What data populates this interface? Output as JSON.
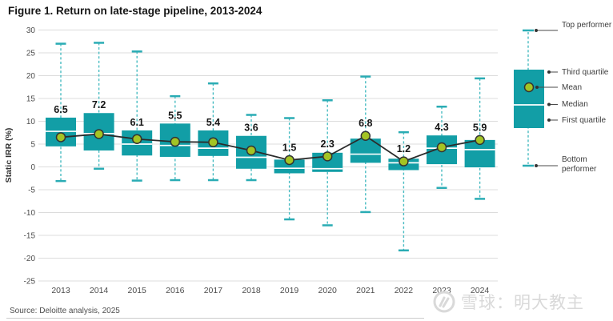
{
  "title": "Figure 1. Return on late-stage pipeline, 2013-2024",
  "source": "Source: Deloitte analysis, 2025",
  "watermark": "雪球：明大教主",
  "colors": {
    "box": "#129EA6",
    "whisker": "#49BCC2",
    "cap": "#2AACB4",
    "median": "#FFFFFF",
    "mean_dot": "#A3C424",
    "mean_dot_border": "#333333",
    "mean_line": "#2B2B2B",
    "grid": "#DCDCDC",
    "tick_text": "#4D4D4D",
    "value_label": "#151515"
  },
  "legend": {
    "top_performer": "Top performer",
    "third_quartile": "Third quartile",
    "mean": "Mean",
    "median": "Median",
    "first_quartile": "First quartile",
    "bottom_performer": "Bottom performer"
  },
  "chart_data": {
    "type": "boxplot",
    "title": "Figure 1. Return on late-stage pipeline, 2013-2024",
    "ylabel": "Static IRR (%)",
    "ylim": [
      -25,
      30
    ],
    "ytick_step": 5,
    "grid": true,
    "categories": [
      "2013",
      "2014",
      "2015",
      "2016",
      "2017",
      "2018",
      "2019",
      "2020",
      "2021",
      "2022",
      "2023",
      "2024"
    ],
    "series": [
      {
        "name": "top_performer",
        "values": [
          27.0,
          27.2,
          25.3,
          15.5,
          18.3,
          11.4,
          10.7,
          14.6,
          19.8,
          7.6,
          13.2,
          19.4
        ]
      },
      {
        "name": "third_quartile",
        "values": [
          10.8,
          11.8,
          8.0,
          9.5,
          8.0,
          6.8,
          1.6,
          3.1,
          6.2,
          1.8,
          6.9,
          5.9
        ]
      },
      {
        "name": "mean",
        "values": [
          6.5,
          7.2,
          6.1,
          5.5,
          5.4,
          3.6,
          1.5,
          2.3,
          6.8,
          1.2,
          4.3,
          5.9
        ]
      },
      {
        "name": "median",
        "values": [
          7.8,
          7.3,
          5.0,
          4.7,
          4.1,
          2.1,
          -0.3,
          -0.4,
          2.8,
          0.9,
          4.1,
          3.8
        ]
      },
      {
        "name": "first_quartile",
        "values": [
          4.5,
          3.6,
          2.5,
          2.2,
          2.4,
          -0.4,
          -1.4,
          -1.1,
          0.9,
          -0.7,
          0.6,
          -0.1
        ]
      },
      {
        "name": "bottom_performer",
        "values": [
          -3.1,
          -0.4,
          -3.0,
          -2.9,
          -2.9,
          -2.9,
          -11.5,
          -12.8,
          -9.9,
          -18.3,
          -4.6,
          -7.0
        ]
      }
    ],
    "mean_labels": [
      "6.5",
      "7.2",
      "6.1",
      "5.5",
      "5.4",
      "3.6",
      "1.5",
      "2.3",
      "6.8",
      "1.2",
      "4.3",
      "5.9"
    ]
  }
}
